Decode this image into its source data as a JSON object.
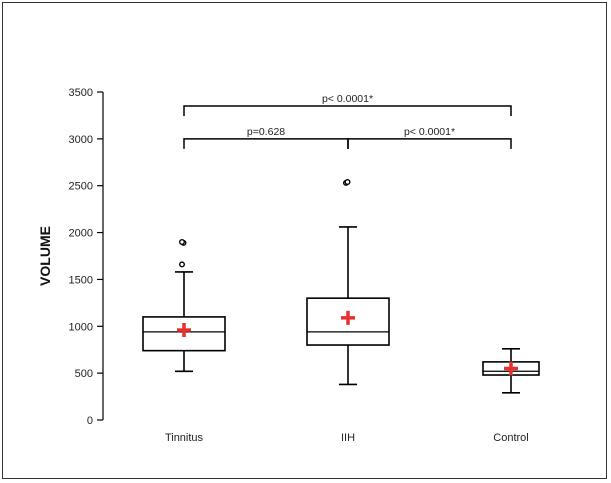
{
  "chart_data": {
    "type": "box",
    "ylabel": "VOLUME",
    "xlabel": "",
    "title": "",
    "ylim": [
      0,
      3500
    ],
    "yticks": [
      0,
      500,
      1000,
      1500,
      2000,
      2500,
      3000,
      3500
    ],
    "categories": [
      "Tinnitus",
      "IIH",
      "Control"
    ],
    "series": [
      {
        "category": "Tinnitus",
        "whisker_low": 520,
        "q1": 740,
        "median": 940,
        "q3": 1100,
        "whisker_high": 1580,
        "mean": 960,
        "outliers": [
          1660,
          1890,
          1900
        ]
      },
      {
        "category": "IIH",
        "whisker_low": 380,
        "q1": 800,
        "median": 940,
        "q3": 1300,
        "whisker_high": 2060,
        "mean": 1090,
        "outliers": [
          2530,
          2540
        ]
      },
      {
        "category": "Control",
        "whisker_low": 290,
        "q1": 480,
        "median": 520,
        "q3": 620,
        "whisker_high": 760,
        "mean": 550,
        "outliers": []
      }
    ],
    "comparisons": [
      {
        "from": "Tinnitus",
        "to": "IIH",
        "label": "p=0.628"
      },
      {
        "from": "IIH",
        "to": "Control",
        "label": "p< 0.0001*"
      },
      {
        "from": "Tinnitus",
        "to": "Control",
        "label": "p< 0.0001*"
      }
    ],
    "colors": {
      "box": "#000000",
      "mean_marker": "#e8312f"
    },
    "grid": false
  }
}
